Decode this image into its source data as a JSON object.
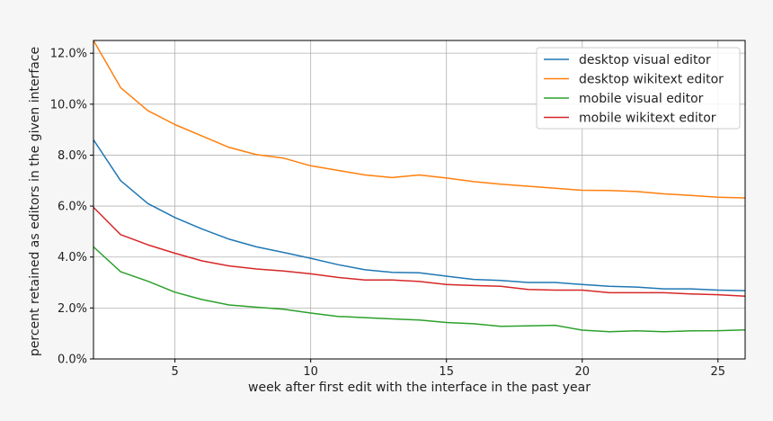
{
  "chart_data": {
    "type": "line",
    "xlabel": "week after first edit with the interface in the past year",
    "ylabel": "percent retained as editors in the given interface",
    "xlim": [
      2,
      26
    ],
    "ylim": [
      0,
      12.5
    ],
    "x_ticks": [
      5,
      10,
      15,
      20,
      25
    ],
    "y_ticks": [
      0,
      2,
      4,
      6,
      8,
      10,
      12
    ],
    "y_tick_labels": [
      "0.0%",
      "2.0%",
      "4.0%",
      "6.0%",
      "8.0%",
      "10.0%",
      "12.0%"
    ],
    "grid": true,
    "legend_position": "top-right",
    "x": [
      2,
      3,
      4,
      5,
      6,
      7,
      8,
      9,
      10,
      11,
      12,
      13,
      14,
      15,
      16,
      17,
      18,
      19,
      20,
      21,
      22,
      23,
      24,
      25,
      26
    ],
    "series": [
      {
        "name": "desktop visual editor",
        "color": "#1f77b4",
        "values": [
          8.6,
          7.0,
          6.1,
          5.55,
          5.1,
          4.7,
          4.4,
          4.18,
          3.95,
          3.7,
          3.5,
          3.4,
          3.38,
          3.25,
          3.12,
          3.08,
          3.0,
          3.0,
          2.92,
          2.85,
          2.82,
          2.75,
          2.75,
          2.7,
          2.68
        ]
      },
      {
        "name": "desktop wikitext editor",
        "color": "#ff7f0e",
        "values": [
          12.5,
          10.65,
          9.75,
          9.2,
          8.75,
          8.3,
          8.02,
          7.88,
          7.58,
          7.4,
          7.22,
          7.12,
          7.22,
          7.1,
          6.96,
          6.86,
          6.78,
          6.7,
          6.62,
          6.61,
          6.57,
          6.48,
          6.42,
          6.35,
          6.32
        ]
      },
      {
        "name": "mobile visual editor",
        "color": "#2ca02c",
        "values": [
          4.4,
          3.42,
          3.05,
          2.62,
          2.33,
          2.12,
          2.03,
          1.95,
          1.8,
          1.67,
          1.62,
          1.57,
          1.53,
          1.43,
          1.38,
          1.28,
          1.3,
          1.32,
          1.13,
          1.07,
          1.1,
          1.07,
          1.1,
          1.11,
          1.14
        ]
      },
      {
        "name": "mobile wikitext editor",
        "color": "#d62728",
        "values": [
          5.95,
          4.88,
          4.48,
          4.15,
          3.85,
          3.65,
          3.53,
          3.45,
          3.34,
          3.2,
          3.1,
          3.1,
          3.04,
          2.92,
          2.88,
          2.85,
          2.73,
          2.7,
          2.7,
          2.6,
          2.6,
          2.6,
          2.55,
          2.52,
          2.46
        ]
      }
    ]
  }
}
